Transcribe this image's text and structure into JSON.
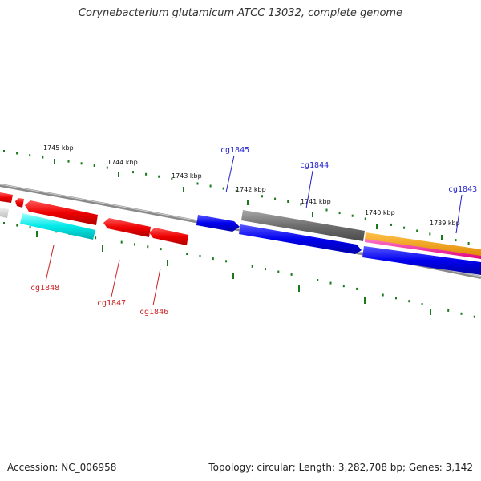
{
  "header": {
    "title": "Corynebacterium glutamicum ATCC 13032, complete genome"
  },
  "footer": {
    "accession": "Accession: NC_006958",
    "stats": "Topology: circular; Length: 3,282,708 bp; Genes: 3,142"
  },
  "colors": {
    "tick": "#1a7a1a",
    "plus_label": "#2222cc",
    "minus_label": "#cc2222",
    "backbone": "#8a8a8a"
  },
  "kbp_labels": [
    "1745 kbp",
    "1744 kbp",
    "1743 kbp",
    "1742 kbp",
    "1741 kbp",
    "1740 kbp",
    "1739 kbp"
  ],
  "gene_labels": {
    "cg1845": "cg1845",
    "cg1844": "cg1844",
    "cg1843": "cg1843",
    "cg1848": "cg1848",
    "cg1847": "cg1847",
    "cg1846": "cg1846"
  }
}
